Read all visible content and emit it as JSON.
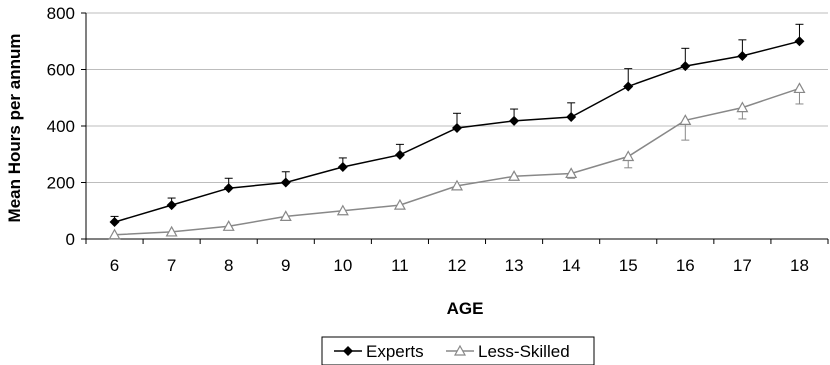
{
  "chart_data": {
    "type": "line",
    "title": "",
    "xlabel": "AGE",
    "ylabel": "Mean Hours per annum",
    "categories": [
      "6",
      "7",
      "8",
      "9",
      "10",
      "11",
      "12",
      "13",
      "14",
      "15",
      "16",
      "17",
      "18"
    ],
    "ylim": [
      0,
      800
    ],
    "yticks": [
      "0",
      "200",
      "400",
      "600",
      "800"
    ],
    "grid": "horizontal",
    "legend_position": "bottom",
    "series": [
      {
        "name": "Experts",
        "values": [
          60,
          120,
          180,
          200,
          255,
          298,
          393,
          418,
          432,
          540,
          612,
          648,
          700
        ],
        "error_upper": [
          80,
          145,
          215,
          238,
          287,
          335,
          445,
          460,
          482,
          603,
          675,
          705,
          760
        ],
        "color": "#000000",
        "marker": "filled-diamond"
      },
      {
        "name": "Less-Skilled",
        "values": [
          15,
          25,
          45,
          80,
          100,
          120,
          188,
          222,
          232,
          292,
          420,
          465,
          533
        ],
        "error_lower": [
          15,
          25,
          45,
          80,
          100,
          112,
          188,
          210,
          215,
          252,
          350,
          425,
          478
        ],
        "color": "#888888",
        "marker": "open-triangle"
      }
    ]
  }
}
